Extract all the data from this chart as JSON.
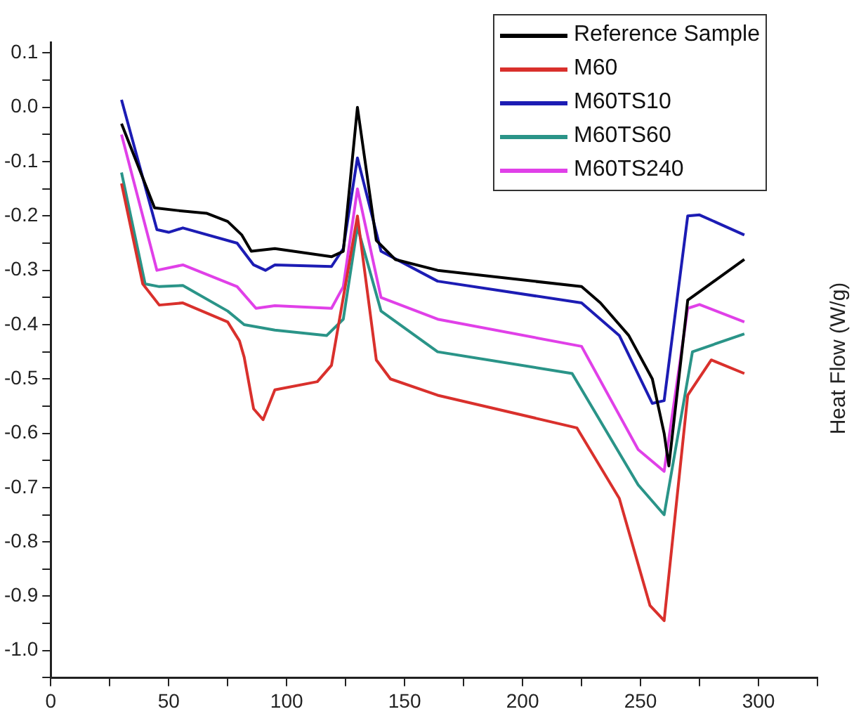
{
  "chart_data": {
    "type": "line",
    "ylabel": "Heat Flow (W/g)",
    "xlim": [
      0,
      325
    ],
    "ylim": [
      -1.05,
      0.12
    ],
    "xticks": [
      0,
      {
        "value": 25,
        "label": null
      },
      50,
      {
        "value": 75,
        "label": null
      },
      100,
      {
        "value": 125,
        "label": null
      },
      150,
      {
        "value": 175,
        "label": null
      },
      200,
      {
        "value": 225,
        "label": null
      },
      250,
      {
        "value": 275,
        "label": null
      },
      300,
      {
        "value": 325,
        "label": null
      }
    ],
    "yticks": [
      {
        "value": -1.05,
        "label": null
      },
      "-1.0",
      {
        "value": -0.95,
        "label": null
      },
      -0.9,
      {
        "value": -0.85,
        "label": null
      },
      -0.8,
      {
        "value": -0.75,
        "label": null
      },
      -0.7,
      {
        "value": -0.65,
        "label": null
      },
      -0.6,
      {
        "value": -0.55,
        "label": null
      },
      -0.5,
      {
        "value": -0.45,
        "label": null
      },
      -0.4,
      {
        "value": -0.35,
        "label": null
      },
      -0.3,
      {
        "value": -0.25,
        "label": null
      },
      -0.2,
      {
        "value": -0.15,
        "label": null
      },
      -0.1,
      {
        "value": -0.05,
        "label": null
      },
      {
        "value": 0,
        "label": "0.0"
      },
      {
        "value": 0.05,
        "label": null
      },
      0.1
    ],
    "grid": false,
    "legend": "top right",
    "marker": "none",
    "line_style": "solid",
    "series": [
      {
        "name": "Reference Sample",
        "color": "#000000",
        "x": [
          30,
          44,
          54,
          66,
          75,
          81,
          85,
          95,
          119,
          124,
          130,
          138,
          146,
          164,
          225,
          233,
          245,
          255,
          260,
          262,
          270,
          294
        ],
        "values": [
          -0.03,
          -0.185,
          -0.19,
          -0.195,
          -0.21,
          -0.235,
          -0.265,
          -0.26,
          -0.275,
          -0.265,
          0.0,
          -0.245,
          -0.28,
          -0.3,
          -0.33,
          -0.36,
          -0.42,
          -0.5,
          -0.6,
          -0.66,
          -0.355,
          -0.28
        ]
      },
      {
        "name": "M60",
        "color": "#d9302c",
        "x": [
          30,
          39,
          46,
          56,
          75,
          80,
          82,
          86,
          90,
          95,
          113,
          119,
          124,
          130,
          138,
          144,
          164,
          223,
          241,
          254,
          260,
          270,
          280,
          294
        ],
        "values": [
          -0.14,
          -0.325,
          -0.364,
          -0.36,
          -0.395,
          -0.43,
          -0.46,
          -0.555,
          -0.575,
          -0.52,
          -0.505,
          -0.475,
          -0.35,
          -0.2,
          -0.465,
          -0.5,
          -0.53,
          -0.59,
          -0.72,
          -0.917,
          -0.945,
          -0.53,
          -0.465,
          -0.49
        ]
      },
      {
        "name": "M60TS10",
        "color": "#1c1cb4",
        "x": [
          30,
          45,
          50,
          56,
          79,
          86,
          91,
          95,
          119,
          124,
          130,
          140,
          164,
          225,
          241,
          255,
          260,
          270,
          275,
          294
        ],
        "values": [
          0.014,
          -0.225,
          -0.23,
          -0.222,
          -0.25,
          -0.29,
          -0.3,
          -0.29,
          -0.293,
          -0.26,
          -0.093,
          -0.265,
          -0.32,
          -0.36,
          -0.42,
          -0.545,
          -0.54,
          -0.2,
          -0.198,
          -0.235
        ]
      },
      {
        "name": "M60TS60",
        "color": "#2a9488",
        "x": [
          30,
          40,
          46,
          56,
          75,
          82,
          95,
          117,
          124,
          130,
          140,
          164,
          221,
          249,
          260,
          272,
          294
        ],
        "values": [
          -0.12,
          -0.325,
          -0.33,
          -0.328,
          -0.375,
          -0.4,
          -0.41,
          -0.42,
          -0.39,
          -0.22,
          -0.375,
          -0.45,
          -0.49,
          -0.695,
          -0.75,
          -0.45,
          -0.417
        ]
      },
      {
        "name": "M60TS240",
        "color": "#e040e8",
        "x": [
          30,
          45,
          56,
          79,
          87,
          95,
          119,
          124,
          130,
          140,
          164,
          225,
          249,
          260,
          270,
          275,
          294
        ],
        "values": [
          -0.05,
          -0.3,
          -0.29,
          -0.33,
          -0.37,
          -0.365,
          -0.37,
          -0.33,
          -0.15,
          -0.35,
          -0.39,
          -0.44,
          -0.63,
          -0.67,
          -0.37,
          -0.363,
          -0.395
        ]
      }
    ]
  }
}
